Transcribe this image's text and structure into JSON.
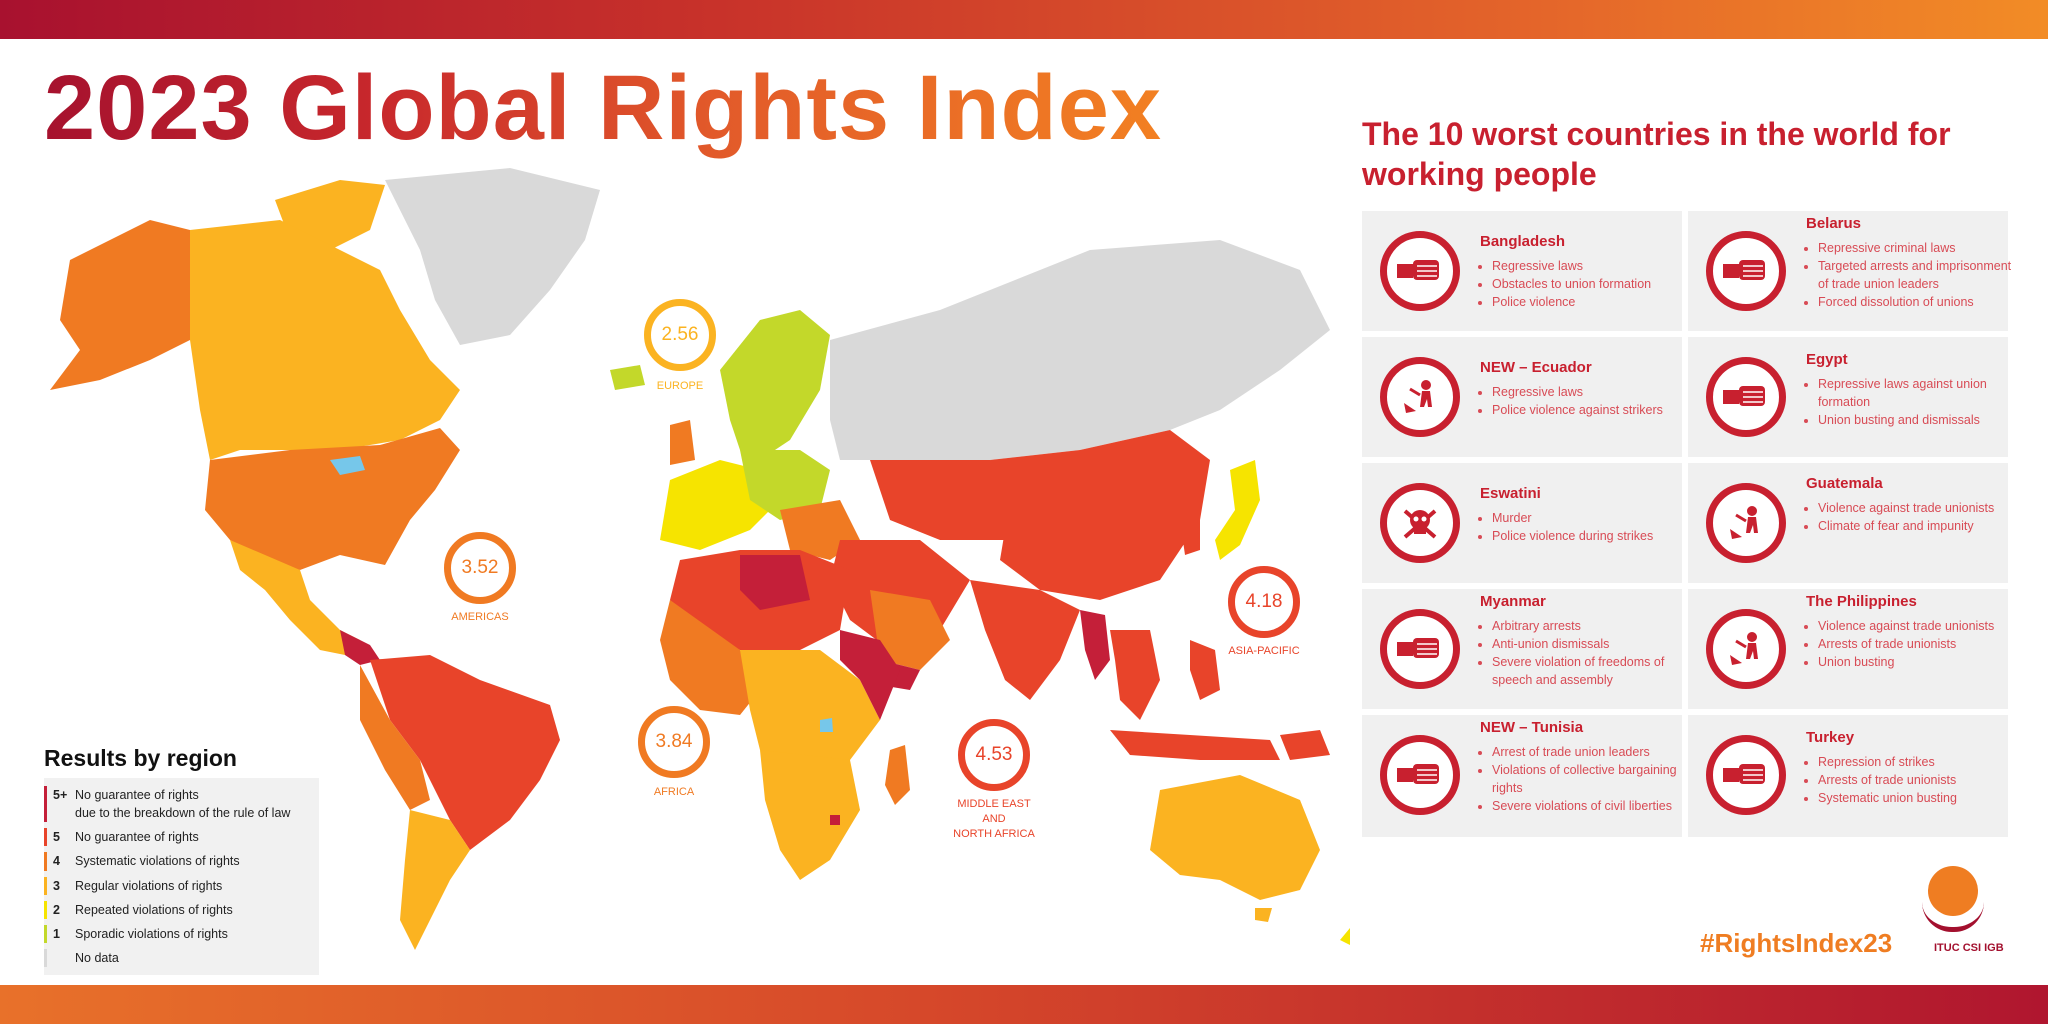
{
  "title": "2023 Global Rights Index",
  "colors": {
    "r5plus": "#c41f39",
    "r5": "#e8442a",
    "r4": "#f07a22",
    "r3": "#fbb321",
    "r2": "#f6e400",
    "r1": "#c3d82a",
    "nodata": "#d9d9d9",
    "water": "#76c7ea",
    "accent": "#c8202f",
    "hashtag": "#ef7d22"
  },
  "regions": [
    {
      "score": "2.56",
      "name": "EUROPE",
      "color": "#fbb321"
    },
    {
      "score": "3.52",
      "name": "AMERICAS",
      "color": "#f07a22"
    },
    {
      "score": "3.84",
      "name": "AFRICA",
      "color": "#f07a22"
    },
    {
      "score": "4.53",
      "name": "MIDDLE EAST AND NORTH AFRICA",
      "line1": "MIDDLE EAST",
      "line2": "AND",
      "line3": "NORTH AFRICA",
      "color": "#e8442a"
    },
    {
      "score": "4.18",
      "name": "ASIA-PACIFIC",
      "color": "#e8442a"
    }
  ],
  "legend": {
    "title": "Results by region",
    "items": [
      {
        "num": "5+",
        "label": "No guarantee of rights",
        "label2": "due to the breakdown of the rule of law",
        "color": "#c41f39"
      },
      {
        "num": "5",
        "label": "No guarantee of rights",
        "color": "#e8442a"
      },
      {
        "num": "4",
        "label": "Systematic violations of rights",
        "color": "#f07a22"
      },
      {
        "num": "3",
        "label": "Regular violations of rights",
        "color": "#fbb321"
      },
      {
        "num": "2",
        "label": "Repeated violations of rights",
        "color": "#f6e400"
      },
      {
        "num": "1",
        "label": "Sporadic violations of rights",
        "color": "#c3d82a"
      },
      {
        "num": "",
        "label": "No data",
        "color": "#d9d9d9"
      }
    ]
  },
  "worst": {
    "title": "The 10 worst countries in the world for working people",
    "countries": [
      {
        "name": "Bangladesh",
        "icon": "fist-icon",
        "items": [
          "Regressive laws",
          "Obstacles to union formation",
          "Police violence"
        ]
      },
      {
        "name": "Belarus",
        "icon": "fist-icon",
        "items": [
          "Repressive criminal laws",
          "Targeted arrests and imprisonment of trade union leaders",
          "Forced dissolution of unions"
        ]
      },
      {
        "name": "NEW – Ecuador",
        "icon": "police-violence-icon",
        "items": [
          "Regressive laws",
          "Police violence against strikers"
        ]
      },
      {
        "name": "Egypt",
        "icon": "fist-icon",
        "items": [
          "Repressive laws against union formation",
          "Union busting and dismissals"
        ]
      },
      {
        "name": "Eswatini",
        "icon": "skull-icon",
        "items": [
          "Murder",
          "Police violence during strikes"
        ]
      },
      {
        "name": "Guatemala",
        "icon": "police-violence-icon",
        "items": [
          "Violence against trade unionists",
          "Climate of fear and impunity"
        ]
      },
      {
        "name": "Myanmar",
        "icon": "fist-icon",
        "items": [
          "Arbitrary arrests",
          "Anti-union dismissals",
          "Severe violation of freedoms of speech and assembly"
        ]
      },
      {
        "name": "The Philippines",
        "icon": "police-violence-icon",
        "items": [
          "Violence against trade unionists",
          "Arrests of trade unionists",
          "Union busting"
        ]
      },
      {
        "name": "NEW – Tunisia",
        "icon": "fist-icon",
        "items": [
          "Arrest of trade union leaders",
          "Violations of collective bargaining rights",
          "Severe violations of civil liberties"
        ]
      },
      {
        "name": "Turkey",
        "icon": "fist-icon",
        "items": [
          "Repression of strikes",
          "Arrests of trade unionists",
          "Systematic union busting"
        ]
      }
    ]
  },
  "hashtag": "#RightsIndex23",
  "logo_text": "ITUC CSI IGB"
}
